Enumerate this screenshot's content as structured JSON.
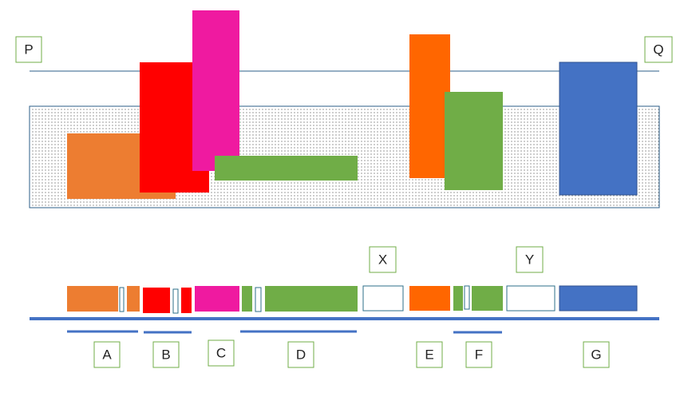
{
  "labels": {
    "top": [
      "P",
      "Q"
    ],
    "middle": [
      "X",
      "Y"
    ],
    "bottom": [
      "A",
      "B",
      "C",
      "D",
      "E",
      "F",
      "G"
    ]
  }
}
